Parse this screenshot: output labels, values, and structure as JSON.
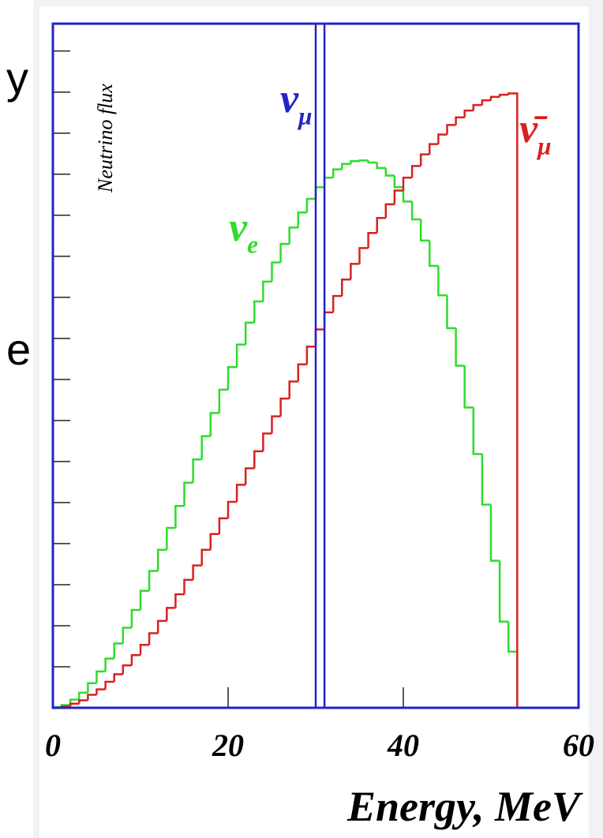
{
  "side_text": [
    "y",
    "e"
  ],
  "chart_data": {
    "type": "histogram",
    "ylabel": "Neutrino flux",
    "xlabel": "Energy, MeV",
    "bins": [
      0,
      1,
      2,
      3,
      4,
      5,
      6,
      7,
      8,
      9,
      10,
      11,
      12,
      13,
      14,
      15,
      16,
      17,
      18,
      19,
      20,
      21,
      22,
      23,
      24,
      25,
      26,
      27,
      28,
      29,
      30,
      31,
      32,
      33,
      34,
      35,
      36,
      37,
      38,
      39,
      40,
      41,
      42,
      43,
      44,
      45,
      46,
      47,
      48,
      49,
      50,
      51,
      52,
      53
    ],
    "series": [
      {
        "name": "νe",
        "color": "#2edc2e",
        "values": [
          0.1,
          0.4,
          1.2,
          2.2,
          3.6,
          5.3,
          7.2,
          9.4,
          11.7,
          14.3,
          17.1,
          20.0,
          23.1,
          26.3,
          29.5,
          32.9,
          36.3,
          39.7,
          43.1,
          46.5,
          49.8,
          53.1,
          56.3,
          59.4,
          62.3,
          65.1,
          67.8,
          70.2,
          72.4,
          74.4,
          76.1,
          77.5,
          78.7,
          79.5,
          79.9,
          80.0,
          79.7,
          78.9,
          77.8,
          76.1,
          74.0,
          71.4,
          68.3,
          64.6,
          60.3,
          55.5,
          50.0,
          43.9,
          37.1,
          29.7,
          21.5,
          12.6,
          8.2
        ]
      },
      {
        "name": "ν̄μ",
        "color": "#d92020",
        "values": [
          0.0,
          0.2,
          0.6,
          1.1,
          1.9,
          2.7,
          3.8,
          4.9,
          6.2,
          7.7,
          9.2,
          10.9,
          12.7,
          14.6,
          16.6,
          18.7,
          20.8,
          23.1,
          25.4,
          27.7,
          30.1,
          32.6,
          35.0,
          37.5,
          40.1,
          42.6,
          45.2,
          47.7,
          50.2,
          52.8,
          55.3,
          57.8,
          60.2,
          62.6,
          64.9,
          67.2,
          69.4,
          71.6,
          73.6,
          75.6,
          77.5,
          79.2,
          80.9,
          82.4,
          83.8,
          85.2,
          86.3,
          87.3,
          88.1,
          88.8,
          89.3,
          89.6,
          89.8
        ]
      }
    ],
    "lines": {
      "name": "νμ",
      "color": "#2323c8",
      "x": [
        30,
        31
      ]
    },
    "xlim": [
      0,
      60
    ],
    "xticks": [
      0,
      20,
      40,
      60
    ],
    "ylim": [
      0,
      100
    ],
    "yticks": [
      6,
      12,
      18,
      24,
      30,
      36,
      42,
      48,
      54,
      60,
      66,
      72,
      78,
      84,
      90,
      96
    ],
    "frame_color": "#2323c8"
  }
}
